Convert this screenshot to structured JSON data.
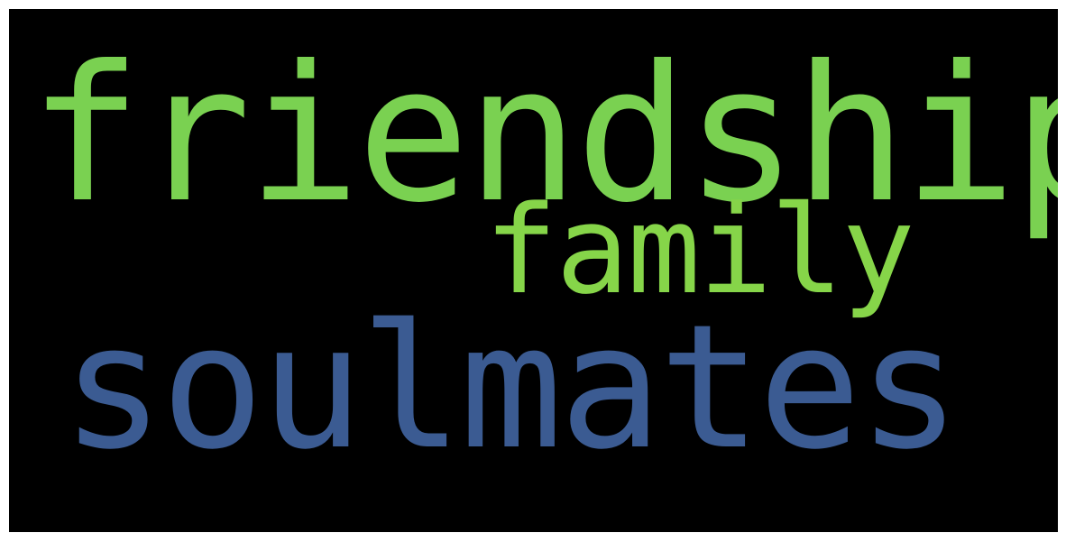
{
  "background_color": "#000000",
  "words": [
    {
      "text": "friendship",
      "color": "#7ad151"
    },
    {
      "text": "family",
      "color": "#86d549"
    },
    {
      "text": "soulmates",
      "color": "#3b5b92"
    }
  ]
}
